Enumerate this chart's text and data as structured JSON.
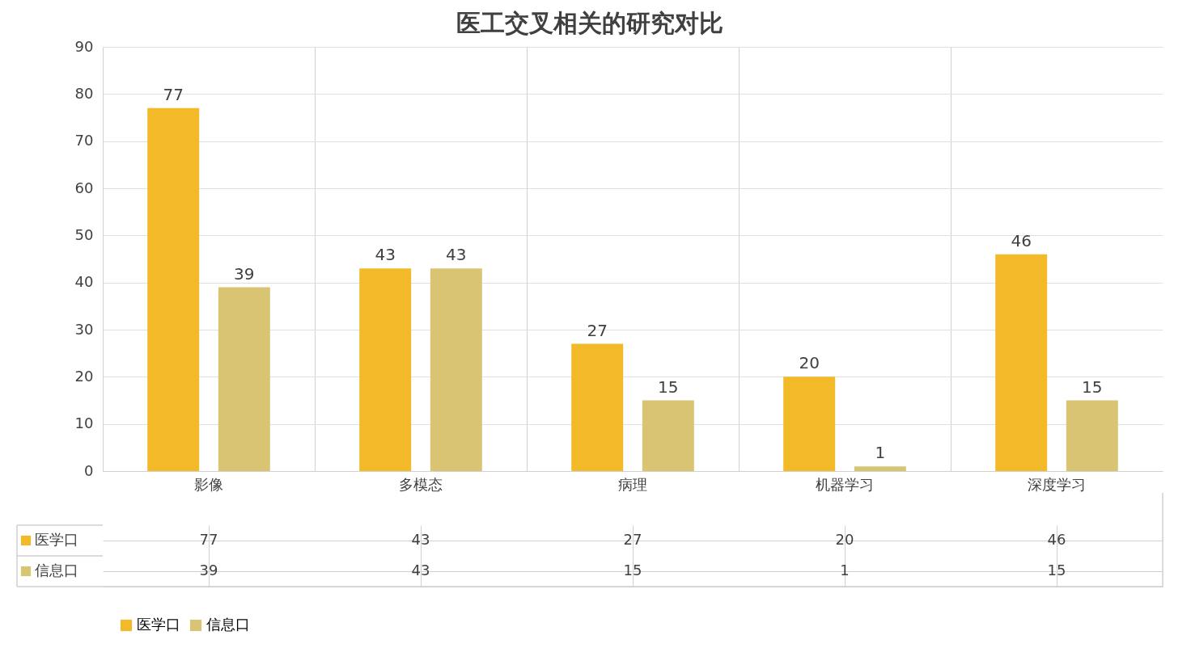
{
  "chart_data": {
    "type": "bar",
    "title": "医工交叉相关的研究对比",
    "categories": [
      "影像",
      "多模态",
      "病理",
      "机器学习",
      "深度学习"
    ],
    "series": [
      {
        "name": "医学口",
        "color": "#f2b929",
        "values": [
          77,
          43,
          27,
          20,
          46
        ]
      },
      {
        "name": "信息口",
        "color": "#d9c474",
        "values": [
          39,
          43,
          15,
          1,
          15
        ]
      }
    ],
    "ylim": [
      0,
      90
    ],
    "yticks": [
      0,
      10,
      20,
      30,
      40,
      50,
      60,
      70,
      80,
      90
    ],
    "grid": "y",
    "legend": "bottom",
    "data_labels": true,
    "annotations": [
      "77",
      "43",
      "27",
      "20",
      "46",
      "39",
      "43",
      "15",
      "1",
      "15"
    ]
  }
}
